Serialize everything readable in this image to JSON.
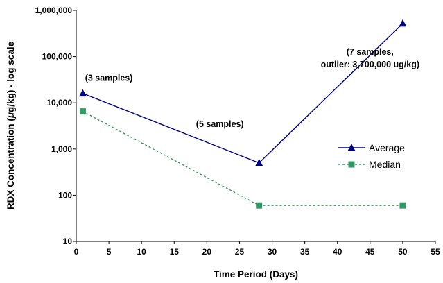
{
  "chart_data": {
    "type": "line",
    "x_axis": {
      "label": "Time Period (Days)",
      "min": 0,
      "max": 55,
      "ticks": [
        "0",
        "5",
        "10",
        "15",
        "20",
        "25",
        "30",
        "35",
        "40",
        "45",
        "50",
        "55"
      ]
    },
    "y_axis": {
      "label_prefix": "RDX Concentration (",
      "label_mu": "μ",
      "label_suffix": "g/kg) - log scale",
      "scale": "log",
      "min": 10,
      "max": 1000000,
      "ticks": [
        "10",
        "100",
        "1,000",
        "10,000",
        "100,000",
        "1,000,000"
      ]
    },
    "grid": false,
    "legend_position": "right",
    "series": [
      {
        "name": "Average",
        "color": "#00007f",
        "line_style": "solid",
        "marker": "triangle",
        "points": [
          {
            "x": 1,
            "y": 16000
          },
          {
            "x": 28,
            "y": 500
          },
          {
            "x": 50,
            "y": 520000
          }
        ]
      },
      {
        "name": "Median",
        "color": "#339966",
        "line_style": "dotted",
        "marker": "square",
        "points": [
          {
            "x": 1,
            "y": 6500
          },
          {
            "x": 28,
            "y": 60
          },
          {
            "x": 50,
            "y": 60
          }
        ]
      }
    ],
    "annotations": [
      {
        "x": 5,
        "y": 30000,
        "lines": [
          "(3 samples)"
        ]
      },
      {
        "x": 22,
        "y": 3000,
        "lines": [
          "(5 samples)"
        ]
      },
      {
        "x": 45,
        "y": 110000,
        "lines": [
          "(7 samples,",
          "outlier: 3,700,000 ug/kg)"
        ]
      }
    ]
  }
}
